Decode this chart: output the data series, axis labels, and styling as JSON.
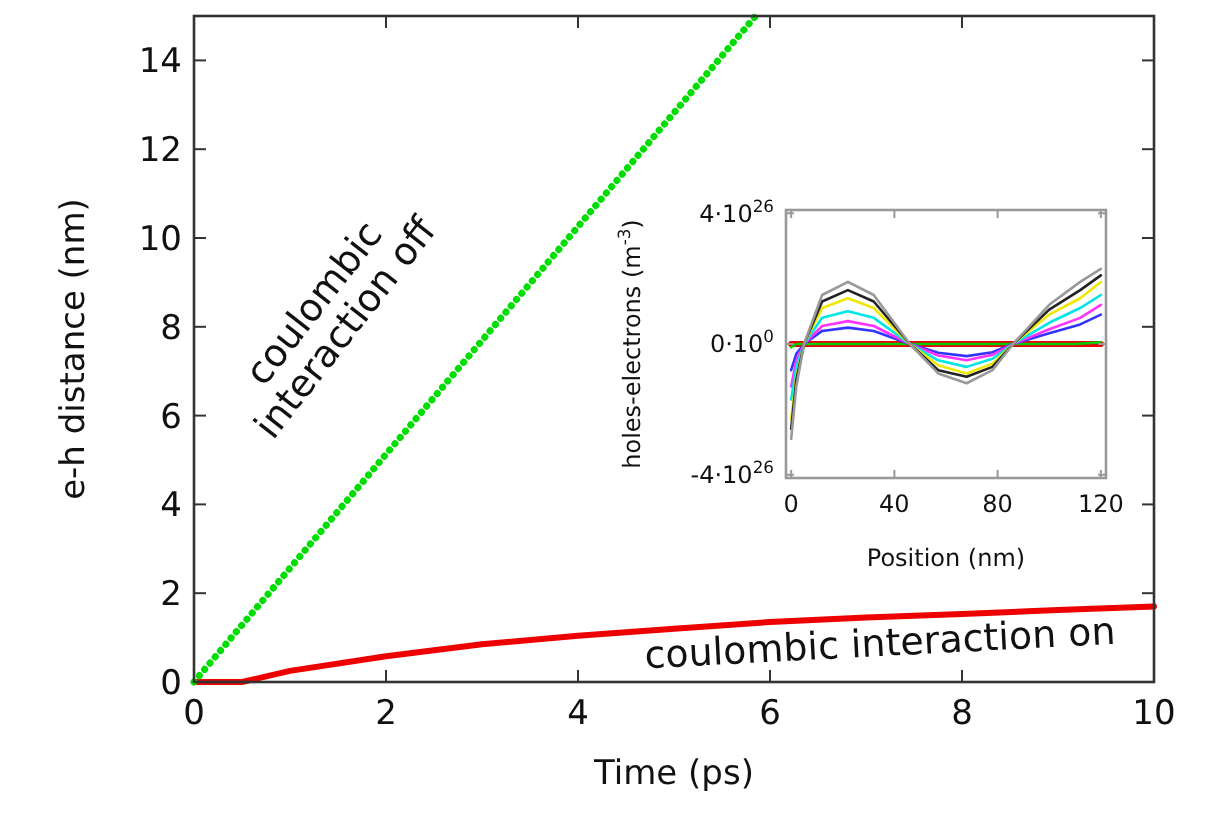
{
  "chart_data": [
    {
      "type": "line",
      "xlabel": "Time (ps)",
      "ylabel": "e-h distance (nm)",
      "xlim": [
        0,
        10
      ],
      "xticks": [
        0,
        2,
        4,
        6,
        8,
        10
      ],
      "ylim": [
        0,
        15
      ],
      "yticks": [
        0,
        2,
        4,
        6,
        8,
        10,
        12,
        14
      ],
      "series": [
        {
          "name": "coulombic interaction on",
          "color": "#ee0000",
          "line_style": "solid",
          "x": [
            0,
            0.5,
            1,
            2,
            3,
            4,
            5,
            6,
            7,
            8,
            9,
            10
          ],
          "values": [
            0,
            0,
            0.25,
            0.58,
            0.85,
            1.04,
            1.2,
            1.35,
            1.45,
            1.53,
            1.62,
            1.7
          ]
        },
        {
          "name": "coulombic interaction off",
          "color": "#00dd00",
          "line_style": "dotted",
          "x": [
            0,
            5.85
          ],
          "values": [
            0,
            15
          ]
        }
      ]
    },
    {
      "type": "line",
      "xlabel": "Position (nm)",
      "ylabel": "holes-electrons (m$^{-3}$)",
      "xlim": [
        -2,
        122
      ],
      "xticks": [
        0,
        40,
        80,
        120
      ],
      "ylim": [
        -4.1e+26,
        4.1e+26
      ],
      "yticks": [
        {
          "value": -4e+26,
          "label": "-4·10$^{26}$"
        },
        {
          "value": 0,
          "label": "0·10$^{0}$"
        },
        {
          "value": 4e+26,
          "label": "4·10$^{26}$"
        }
      ],
      "series": [
        {
          "color": "#ee0000",
          "x": [
            0,
            120
          ],
          "values": [
            0,
            0
          ]
        },
        {
          "color": "#00cc00",
          "x": [
            0,
            2,
            5,
            60,
            110,
            120
          ],
          "values": [
            -1e+25,
            0,
            0,
            0,
            0,
            5e+24
          ]
        },
        {
          "color": "#3333ff",
          "x": [
            0,
            2,
            5,
            12,
            22,
            32,
            46,
            57,
            68,
            78,
            86,
            100,
            112,
            120
          ],
          "values": [
            -8e+25,
            -3e+25,
            0,
            4e+25,
            5e+25,
            4e+25,
            0,
            -2.7e+25,
            -3.7e+25,
            -2.5e+25,
            0,
            3.3e+25,
            6e+25,
            9e+25
          ]
        },
        {
          "color": "#ff33ff",
          "x": [
            0,
            2,
            5,
            12,
            22,
            32,
            46,
            57,
            68,
            78,
            86,
            100,
            112,
            120
          ],
          "values": [
            -1.3e+26,
            -5e+25,
            0,
            5.5e+25,
            7e+25,
            5.5e+25,
            0,
            -3.5e+25,
            -5e+25,
            -3.3e+25,
            0,
            4.5e+25,
            8e+25,
            1.2e+26
          ]
        },
        {
          "color": "#00e5e5",
          "x": [
            0,
            2,
            5,
            12,
            22,
            32,
            46,
            57,
            68,
            78,
            86,
            100,
            112,
            120
          ],
          "values": [
            -1.7e+26,
            -7e+25,
            0,
            8e+25,
            1e+26,
            8e+25,
            0,
            -5e+25,
            -7e+25,
            -4.5e+25,
            0,
            6.5e+25,
            1.1e+26,
            1.5e+26
          ]
        },
        {
          "color": "#f0e800",
          "x": [
            0,
            2,
            5,
            12,
            22,
            32,
            46,
            57,
            68,
            78,
            86,
            100,
            112,
            120
          ],
          "values": [
            -2.3e+26,
            -1e+26,
            0,
            1.1e+26,
            1.4e+26,
            1.1e+26,
            0,
            -6.5e+25,
            -9e+25,
            -6e+25,
            0,
            9e+25,
            1.4e+26,
            1.9e+26
          ]
        },
        {
          "color": "#222222",
          "x": [
            0,
            2,
            5,
            12,
            22,
            32,
            46,
            57,
            68,
            78,
            86,
            100,
            112,
            120
          ],
          "values": [
            -2.6e+26,
            -1.1e+26,
            0,
            1.3e+26,
            1.65e+26,
            1.3e+26,
            0,
            -8e+25,
            -1e+26,
            -7e+25,
            0,
            1.05e+26,
            1.65e+26,
            2.1e+26
          ]
        },
        {
          "color": "#999999",
          "x": [
            0,
            2,
            5,
            12,
            22,
            32,
            46,
            57,
            68,
            78,
            86,
            100,
            112,
            120
          ],
          "values": [
            -2.9e+26,
            -1.3e+26,
            0,
            1.5e+26,
            1.9e+26,
            1.5e+26,
            0,
            -9e+25,
            -1.2e+26,
            -8e+25,
            0,
            1.2e+26,
            1.9e+26,
            2.3e+26
          ]
        }
      ]
    }
  ]
}
